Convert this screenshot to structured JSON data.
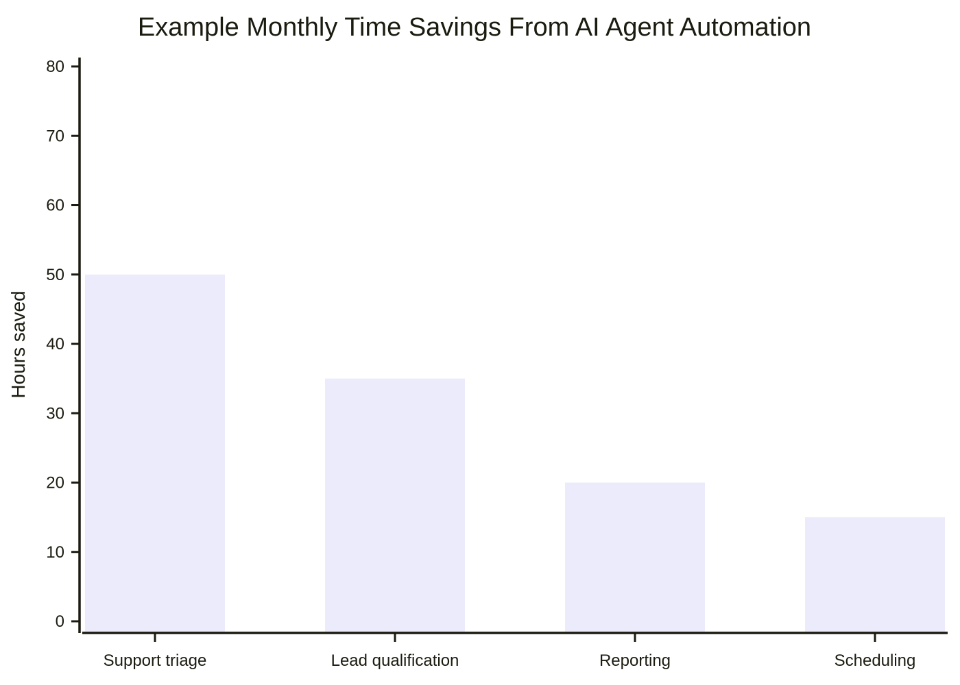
{
  "chart_data": {
    "type": "bar",
    "title": "Example Monthly Time Savings From AI Agent Automation",
    "xlabel": "",
    "ylabel": "Hours saved",
    "categories": [
      "Support triage",
      "Lead qualification",
      "Reporting",
      "Scheduling"
    ],
    "values": [
      50,
      35,
      20,
      15
    ],
    "ylim": [
      0,
      80
    ],
    "yticks": [
      "0",
      "10",
      "20",
      "30",
      "40",
      "50",
      "60",
      "70",
      "80"
    ],
    "grid": false,
    "legend": "none",
    "colors": {
      "bar": "#ebebfb",
      "axis": "#1b1b10",
      "text": "#1b1b10",
      "background": "#ffffff"
    }
  }
}
